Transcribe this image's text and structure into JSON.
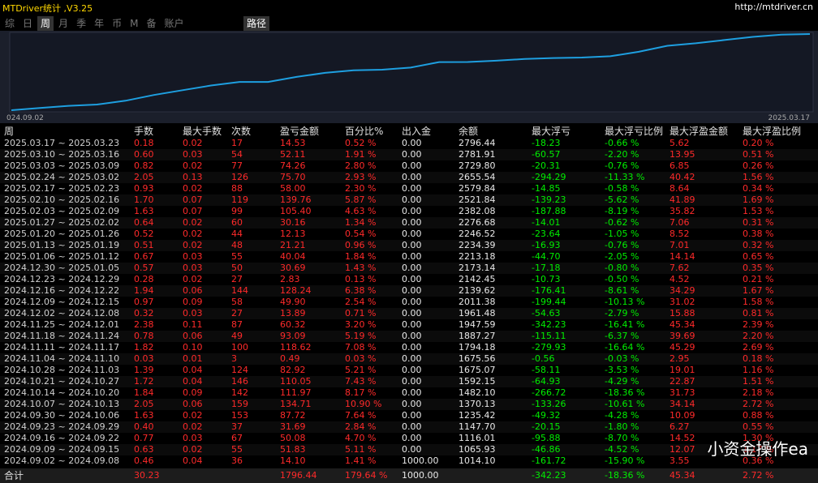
{
  "app": {
    "title": "MTDriver统计 ,V3.25",
    "url": "http://mtdriver.cn"
  },
  "tabs": [
    "综",
    "日",
    "周",
    "月",
    "季",
    "年",
    "币",
    "M",
    "备",
    "账户"
  ],
  "active_tab_index": 2,
  "path_button": "路径",
  "chart": {
    "start_label": "024.09.02",
    "end_label": "2025.03.17",
    "color": "#1e9fe0"
  },
  "watermark": "小资金操作ea",
  "table": {
    "header": [
      "周",
      "手数",
      "最大手数",
      "次数",
      "盈亏金额",
      "百分比%",
      "出入金",
      "余额",
      "最大浮亏",
      "最大浮亏比例",
      "最大浮盈金额",
      "最大浮盈比例"
    ],
    "rows": [
      [
        "2025.03.17 ~ 2025.03.23",
        "0.18",
        "0.02",
        "17",
        "14.53",
        "0.52 %",
        "0.00",
        "2796.44",
        "-18.23",
        "-0.66 %",
        "5.62",
        "0.20 %"
      ],
      [
        "2025.03.10 ~ 2025.03.16",
        "0.60",
        "0.03",
        "54",
        "52.11",
        "1.91 %",
        "0.00",
        "2781.91",
        "-60.57",
        "-2.20 %",
        "13.95",
        "0.51 %"
      ],
      [
        "2025.03.03 ~ 2025.03.09",
        "0.82",
        "0.02",
        "77",
        "74.26",
        "2.80 %",
        "0.00",
        "2729.80",
        "-20.31",
        "-0.76 %",
        "6.85",
        "0.26 %"
      ],
      [
        "2025.02.24 ~ 2025.03.02",
        "2.05",
        "0.13",
        "126",
        "75.70",
        "2.93 %",
        "0.00",
        "2655.54",
        "-294.29",
        "-11.33 %",
        "40.42",
        "1.56 %"
      ],
      [
        "2025.02.17 ~ 2025.02.23",
        "0.93",
        "0.02",
        "88",
        "58.00",
        "2.30 %",
        "0.00",
        "2579.84",
        "-14.85",
        "-0.58 %",
        "8.64",
        "0.34 %"
      ],
      [
        "2025.02.10 ~ 2025.02.16",
        "1.70",
        "0.07",
        "119",
        "139.76",
        "5.87 %",
        "0.00",
        "2521.84",
        "-139.23",
        "-5.62 %",
        "41.89",
        "1.69 %"
      ],
      [
        "2025.02.03 ~ 2025.02.09",
        "1.63",
        "0.07",
        "99",
        "105.40",
        "4.63 %",
        "0.00",
        "2382.08",
        "-187.88",
        "-8.19 %",
        "35.82",
        "1.53 %"
      ],
      [
        "2025.01.27 ~ 2025.02.02",
        "0.64",
        "0.02",
        "60",
        "30.16",
        "1.34 %",
        "0.00",
        "2276.68",
        "-14.01",
        "-0.62 %",
        "7.06",
        "0.31 %"
      ],
      [
        "2025.01.20 ~ 2025.01.26",
        "0.52",
        "0.02",
        "44",
        "12.13",
        "0.54 %",
        "0.00",
        "2246.52",
        "-23.64",
        "-1.05 %",
        "8.52",
        "0.38 %"
      ],
      [
        "2025.01.13 ~ 2025.01.19",
        "0.51",
        "0.02",
        "48",
        "21.21",
        "0.96 %",
        "0.00",
        "2234.39",
        "-16.93",
        "-0.76 %",
        "7.01",
        "0.32 %"
      ],
      [
        "2025.01.06 ~ 2025.01.12",
        "0.67",
        "0.03",
        "55",
        "40.04",
        "1.84 %",
        "0.00",
        "2213.18",
        "-44.70",
        "-2.05 %",
        "14.14",
        "0.65 %"
      ],
      [
        "2024.12.30 ~ 2025.01.05",
        "0.57",
        "0.03",
        "50",
        "30.69",
        "1.43 %",
        "0.00",
        "2173.14",
        "-17.18",
        "-0.80 %",
        "7.62",
        "0.35 %"
      ],
      [
        "2024.12.23 ~ 2024.12.29",
        "0.28",
        "0.02",
        "27",
        "2.83",
        "0.13 %",
        "0.00",
        "2142.45",
        "-10.73",
        "-0.50 %",
        "4.52",
        "0.21 %"
      ],
      [
        "2024.12.16 ~ 2024.12.22",
        "1.94",
        "0.06",
        "144",
        "128.24",
        "6.38 %",
        "0.00",
        "2139.62",
        "-176.41",
        "-8.61 %",
        "34.29",
        "1.67 %"
      ],
      [
        "2024.12.09 ~ 2024.12.15",
        "0.97",
        "0.09",
        "58",
        "49.90",
        "2.54 %",
        "0.00",
        "2011.38",
        "-199.44",
        "-10.13 %",
        "31.02",
        "1.58 %"
      ],
      [
        "2024.12.02 ~ 2024.12.08",
        "0.32",
        "0.03",
        "27",
        "13.89",
        "0.71 %",
        "0.00",
        "1961.48",
        "-54.63",
        "-2.79 %",
        "15.88",
        "0.81 %"
      ],
      [
        "2024.11.25 ~ 2024.12.01",
        "2.38",
        "0.11",
        "87",
        "60.32",
        "3.20 %",
        "0.00",
        "1947.59",
        "-342.23",
        "-16.41 %",
        "45.34",
        "2.39 %"
      ],
      [
        "2024.11.18 ~ 2024.11.24",
        "0.78",
        "0.06",
        "49",
        "93.09",
        "5.19 %",
        "0.00",
        "1887.27",
        "-115.11",
        "-6.37 %",
        "39.69",
        "2.20 %"
      ],
      [
        "2024.11.11 ~ 2024.11.17",
        "1.82",
        "0.10",
        "100",
        "118.62",
        "7.08 %",
        "0.00",
        "1794.18",
        "-279.93",
        "-16.64 %",
        "45.29",
        "2.69 %"
      ],
      [
        "2024.11.04 ~ 2024.11.10",
        "0.03",
        "0.01",
        "3",
        "0.49",
        "0.03 %",
        "0.00",
        "1675.56",
        "-0.56",
        "-0.03 %",
        "2.95",
        "0.18 %"
      ],
      [
        "2024.10.28 ~ 2024.11.03",
        "1.39",
        "0.04",
        "124",
        "82.92",
        "5.21 %",
        "0.00",
        "1675.07",
        "-58.11",
        "-3.53 %",
        "19.01",
        "1.16 %"
      ],
      [
        "2024.10.21 ~ 2024.10.27",
        "1.72",
        "0.04",
        "146",
        "110.05",
        "7.43 %",
        "0.00",
        "1592.15",
        "-64.93",
        "-4.29 %",
        "22.87",
        "1.51 %"
      ],
      [
        "2024.10.14 ~ 2024.10.20",
        "1.84",
        "0.09",
        "142",
        "111.97",
        "8.17 %",
        "0.00",
        "1482.10",
        "-266.72",
        "-18.36 %",
        "31.73",
        "2.18 %"
      ],
      [
        "2024.10.07 ~ 2024.10.13",
        "2.05",
        "0.06",
        "159",
        "134.71",
        "10.90 %",
        "0.00",
        "1370.13",
        "-133.26",
        "-10.61 %",
        "34.14",
        "2.72 %"
      ],
      [
        "2024.09.30 ~ 2024.10.06",
        "1.63",
        "0.02",
        "153",
        "87.72",
        "7.64 %",
        "0.00",
        "1235.42",
        "-49.32",
        "-4.28 %",
        "10.09",
        "0.88 %"
      ],
      [
        "2024.09.23 ~ 2024.09.29",
        "0.40",
        "0.02",
        "37",
        "31.69",
        "2.84 %",
        "0.00",
        "1147.70",
        "-20.15",
        "-1.80 %",
        "6.27",
        "0.55 %"
      ],
      [
        "2024.09.16 ~ 2024.09.22",
        "0.77",
        "0.03",
        "67",
        "50.08",
        "4.70 %",
        "0.00",
        "1116.01",
        "-95.88",
        "-8.70 %",
        "14.52",
        "1.30 %"
      ],
      [
        "2024.09.09 ~ 2024.09.15",
        "0.63",
        "0.02",
        "55",
        "51.83",
        "5.11 %",
        "0.00",
        "1065.93",
        "-46.86",
        "-4.52 %",
        "12.07",
        "1.17 %"
      ],
      [
        "2024.09.02 ~ 2024.09.08",
        "0.46",
        "0.04",
        "36",
        "14.10",
        "1.41 %",
        "1000.00",
        "1014.10",
        "-161.72",
        "-15.90 %",
        "3.55",
        "0.36 %"
      ]
    ],
    "total": {
      "label": "合计",
      "values": {
        "手数": "30.23",
        "盈亏金额": "1796.44",
        "百分比%": "179.64 %",
        "出入金": "1000.00",
        "最大浮亏": "-342.23",
        "最大浮亏比例": "-18.36 %",
        "最大浮盈金额": "45.34",
        "最大浮盈比例": "2.72 %"
      }
    }
  }
}
